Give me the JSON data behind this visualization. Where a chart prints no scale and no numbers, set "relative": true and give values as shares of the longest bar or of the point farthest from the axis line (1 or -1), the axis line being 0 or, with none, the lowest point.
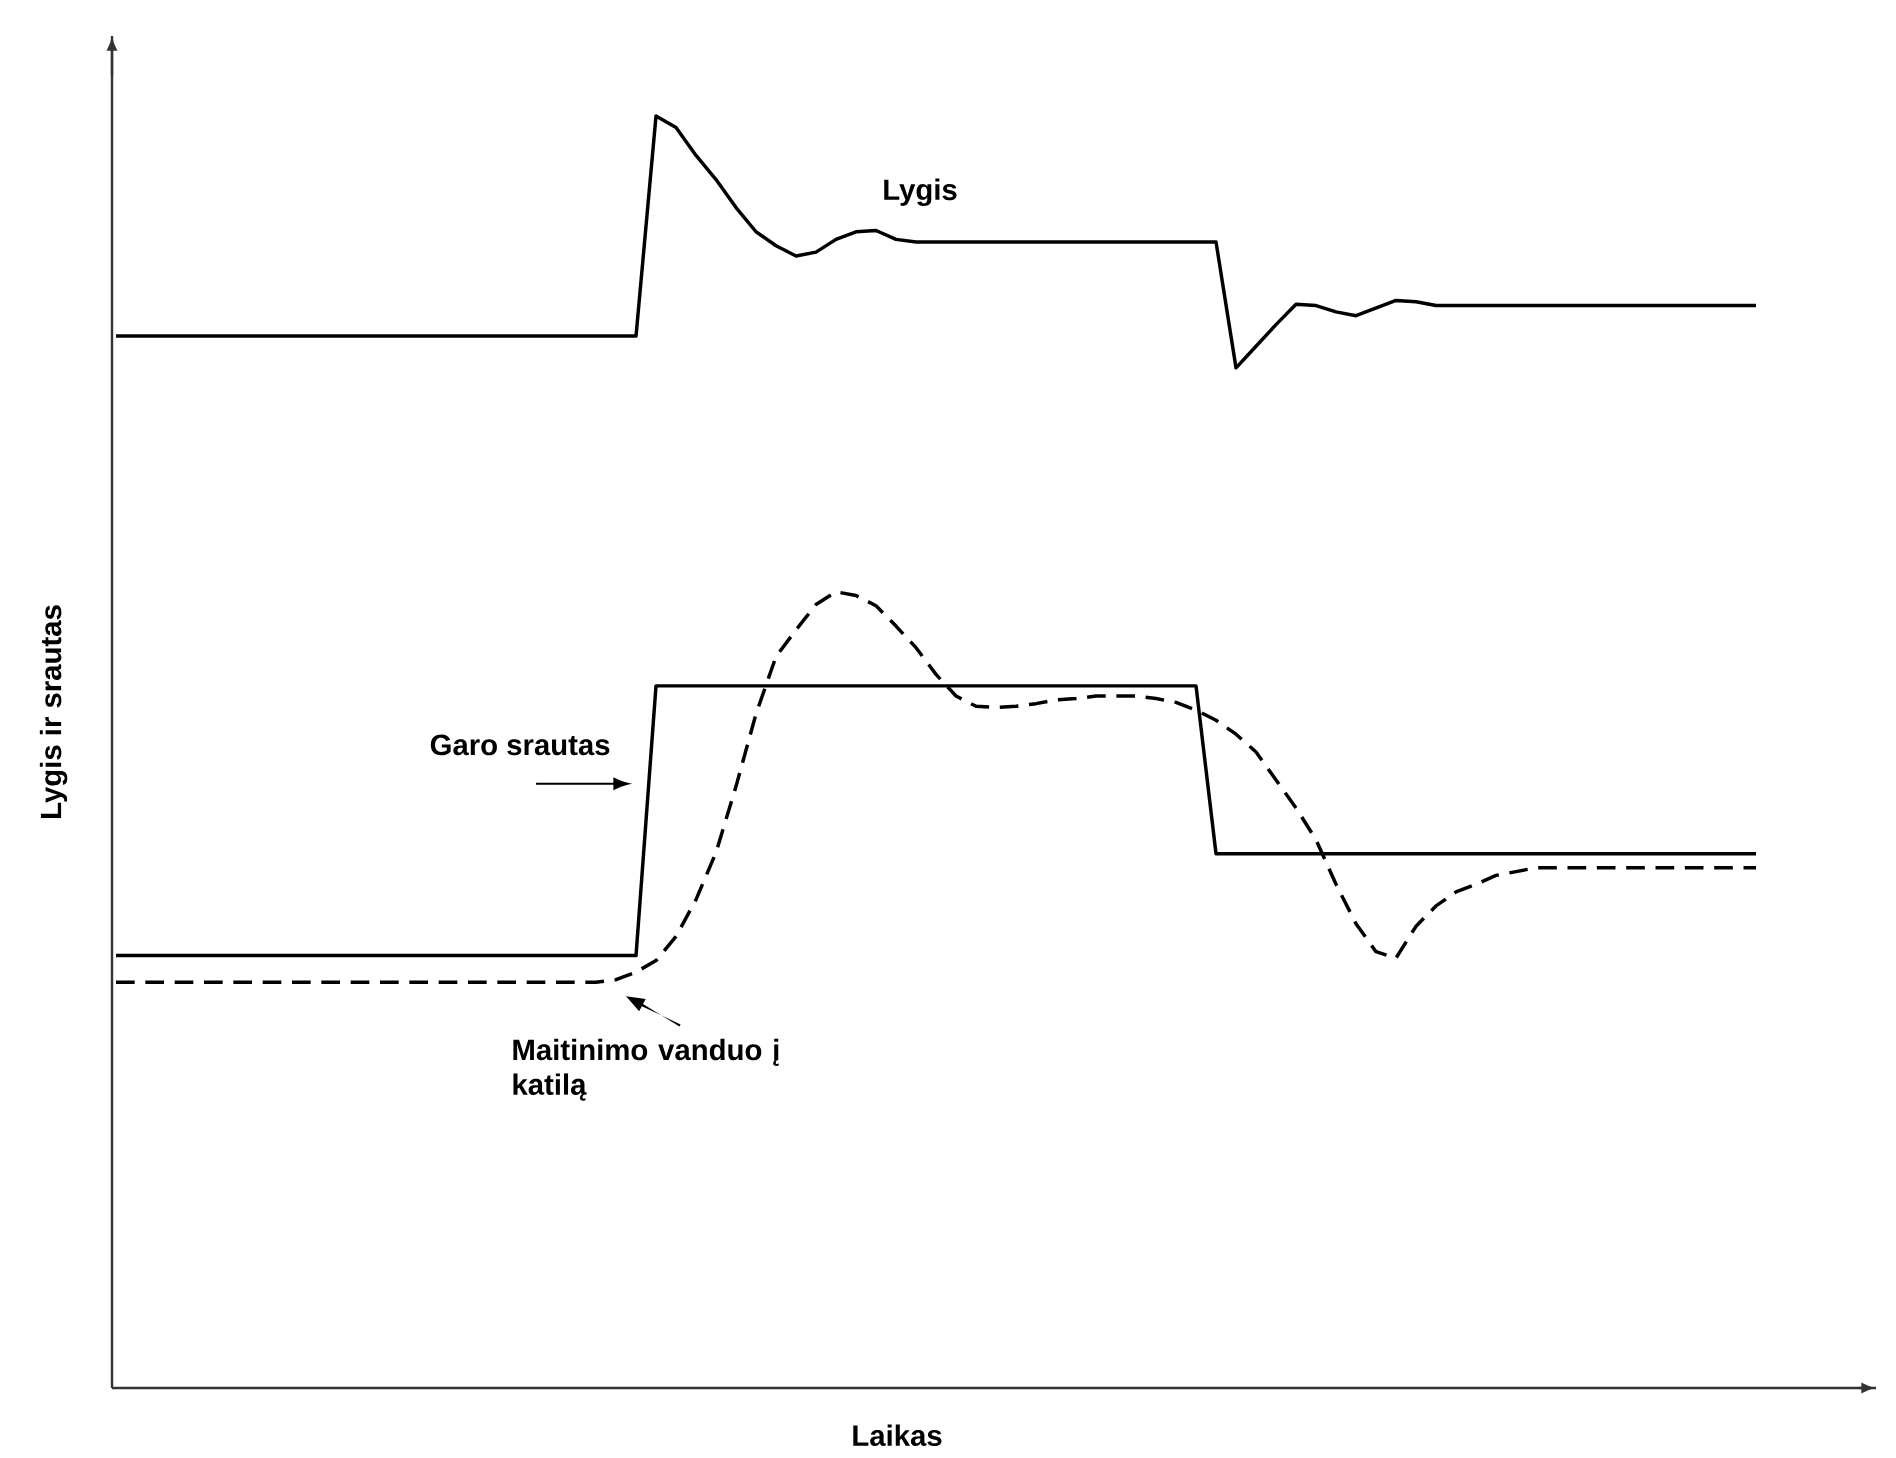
{
  "chart_data": {
    "type": "line",
    "relative": true,
    "xlabel": "Laikas",
    "ylabel": "Lygis ir srautas",
    "categories": [
      null,
      null,
      null,
      null,
      null,
      null,
      null,
      null,
      null,
      null,
      null,
      null,
      null,
      null,
      null,
      null,
      null,
      null,
      null,
      null,
      null,
      null,
      null,
      null,
      null,
      null,
      null,
      null,
      null,
      null,
      null,
      null,
      null,
      null,
      null,
      null,
      null,
      null,
      null,
      null,
      null,
      null,
      null,
      null,
      null,
      null,
      null,
      null,
      null,
      null,
      null,
      null,
      null,
      null,
      null,
      null,
      null,
      null,
      null,
      null,
      null,
      null,
      null,
      null,
      null,
      null,
      null,
      null,
      null,
      null,
      null,
      null,
      null,
      null,
      null,
      null,
      null,
      null,
      null,
      null,
      null,
      null,
      null
    ],
    "series": [
      {
        "name": "Lygis",
        "color": "#000000",
        "line_style": "solid",
        "values": [
          0.827,
          0.827,
          0.827,
          0.827,
          0.827,
          0.827,
          0.827,
          0.827,
          0.827,
          0.827,
          0.827,
          0.827,
          0.827,
          0.827,
          0.827,
          0.827,
          0.827,
          0.827,
          0.827,
          0.827,
          0.827,
          0.827,
          0.827,
          0.827,
          0.827,
          0.827,
          0.827,
          1.0,
          0.991,
          0.969,
          0.95,
          0.928,
          0.909,
          0.898,
          0.89,
          0.893,
          0.903,
          0.909,
          0.91,
          0.903,
          0.901,
          0.901,
          0.901,
          0.901,
          0.901,
          0.901,
          0.901,
          0.901,
          0.901,
          0.901,
          0.901,
          0.901,
          0.901,
          0.901,
          0.901,
          0.901,
          0.802,
          0.819,
          0.836,
          0.852,
          0.851,
          0.846,
          0.843,
          0.849,
          0.855,
          0.854,
          0.851,
          0.851,
          0.851,
          0.851,
          0.851,
          0.851,
          0.851,
          0.851,
          0.851,
          0.851,
          0.851,
          0.851,
          0.851,
          0.851,
          0.851,
          0.851,
          0.851
        ]
      },
      {
        "name": "Garo srautas",
        "color": "#000000",
        "line_style": "solid",
        "values": [
          0.34,
          0.34,
          0.34,
          0.34,
          0.34,
          0.34,
          0.34,
          0.34,
          0.34,
          0.34,
          0.34,
          0.34,
          0.34,
          0.34,
          0.34,
          0.34,
          0.34,
          0.34,
          0.34,
          0.34,
          0.34,
          0.34,
          0.34,
          0.34,
          0.34,
          0.34,
          0.34,
          0.552,
          0.552,
          0.552,
          0.552,
          0.552,
          0.552,
          0.552,
          0.552,
          0.552,
          0.552,
          0.552,
          0.552,
          0.552,
          0.552,
          0.552,
          0.552,
          0.552,
          0.552,
          0.552,
          0.552,
          0.552,
          0.552,
          0.552,
          0.552,
          0.552,
          0.552,
          0.552,
          0.552,
          0.42,
          0.42,
          0.42,
          0.42,
          0.42,
          0.42,
          0.42,
          0.42,
          0.42,
          0.42,
          0.42,
          0.42,
          0.42,
          0.42,
          0.42,
          0.42,
          0.42,
          0.42,
          0.42,
          0.42,
          0.42,
          0.42,
          0.42,
          0.42,
          0.42,
          0.42,
          0.42,
          0.42
        ]
      },
      {
        "name": "Maitinimo vanduo į katilą",
        "color": "#000000",
        "line_style": "dashed",
        "values": [
          0.319,
          0.319,
          0.319,
          0.319,
          0.319,
          0.319,
          0.319,
          0.319,
          0.319,
          0.319,
          0.319,
          0.319,
          0.319,
          0.319,
          0.319,
          0.319,
          0.319,
          0.319,
          0.319,
          0.319,
          0.319,
          0.319,
          0.319,
          0.319,
          0.319,
          0.321,
          0.327,
          0.336,
          0.355,
          0.384,
          0.421,
          0.473,
          0.53,
          0.575,
          0.596,
          0.616,
          0.626,
          0.623,
          0.615,
          0.599,
          0.582,
          0.561,
          0.544,
          0.536,
          0.535,
          0.536,
          0.538,
          0.541,
          0.542,
          0.544,
          0.544,
          0.544,
          0.542,
          0.539,
          0.533,
          0.525,
          0.514,
          0.5,
          0.478,
          0.456,
          0.431,
          0.396,
          0.365,
          0.343,
          0.338,
          0.363,
          0.379,
          0.39,
          0.396,
          0.403,
          0.406,
          0.409,
          0.409,
          0.409,
          0.409,
          0.409,
          0.409,
          0.409,
          0.409,
          0.409,
          0.409,
          0.409,
          0.409
        ]
      }
    ]
  }
}
